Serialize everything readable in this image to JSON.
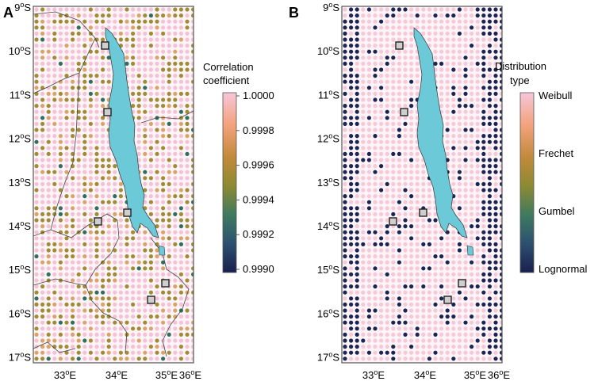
{
  "panels": [
    {
      "letter": "A",
      "colorbar_title": [
        "Correlation",
        "coefficient"
      ],
      "colorbar_ticks": [
        "1.0000",
        "0.9998",
        "0.9996",
        "0.9994",
        "0.9992",
        "0.9990"
      ],
      "colors": {
        "base": "#f3c2d4",
        "accent": "#9f8d35",
        "accent2": "#2f6f5e"
      }
    },
    {
      "letter": "B",
      "colorbar_title": [
        "Distribution",
        "type"
      ],
      "colorbar_ticks": [
        "Weibull",
        "Frechet",
        "Gumbel",
        "Lognormal"
      ],
      "colors": {
        "base": "#f6c8d8",
        "accent": "#1b2553",
        "accent2": "#1b2553"
      }
    }
  ],
  "lat_labels": [
    "9°S",
    "10°S",
    "11°S",
    "12°S",
    "13°S",
    "14°S",
    "15°S",
    "16°S",
    "17°S"
  ],
  "lon_labels": [
    "33°E",
    "34°E",
    "35°E",
    "36°E"
  ],
  "colors": {
    "lake": "#6ccad8",
    "frame": "#555555",
    "colorbar": [
      "#f6c6d9",
      "#f4a27c",
      "#c18a3a",
      "#8c8a32",
      "#3e7a60",
      "#2c5070",
      "#1b1f4d"
    ]
  },
  "icons": [
    "station-marker-icon"
  ]
}
